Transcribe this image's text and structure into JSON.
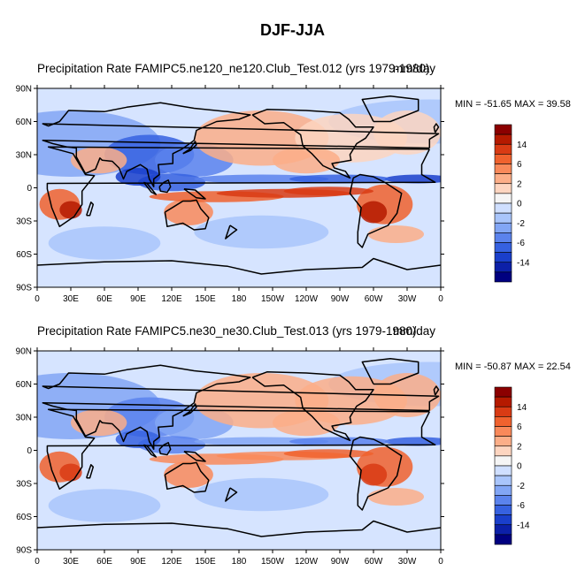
{
  "figure": {
    "title": "DJF-JJA"
  },
  "chart_data": [
    {
      "type": "heatmap",
      "title": "Precipitation Rate",
      "subtitle": "FAMIPC5.ne120_ne120.Club_Test.012 (yrs 1979-1980)",
      "units": "mm/day",
      "stats": "MIN = -51.65 MAX =  39.58",
      "xticks": [
        "0",
        "30E",
        "60E",
        "90E",
        "120E",
        "150E",
        "180",
        "150W",
        "120W",
        "90W",
        "60W",
        "30W",
        "0"
      ],
      "yticks": [
        "90N",
        "60N",
        "30N",
        "0",
        "30S",
        "60S",
        "90S"
      ],
      "xlim": [
        0,
        360
      ],
      "ylim": [
        -90,
        90
      ],
      "colorbar": {
        "labels": [
          "14",
          "6",
          "2",
          "0",
          "-2",
          "-6",
          "-14"
        ],
        "colors": [
          "#8b0000",
          "#b51a00",
          "#d93b14",
          "#f0622e",
          "#f9895a",
          "#fcae88",
          "#fdd5c0",
          "#f5f5f5",
          "#cfdfff",
          "#a9c5fb",
          "#82a6f5",
          "#5b83ed",
          "#3661e0",
          "#1a3fcb",
          "#0c20a8",
          "#000080"
        ]
      }
    },
    {
      "type": "heatmap",
      "title": "Precipitation Rate",
      "subtitle": "FAMIPC5.ne30_ne30.Club_Test.013 (yrs 1979-1980)",
      "units": "mm/day",
      "stats": "MIN = -50.87 MAX =  22.54",
      "xticks": [
        "0",
        "30E",
        "60E",
        "90E",
        "120E",
        "150E",
        "180",
        "150W",
        "120W",
        "90W",
        "60W",
        "30W",
        "0"
      ],
      "yticks": [
        "90N",
        "60N",
        "30N",
        "0",
        "30S",
        "60S",
        "90S"
      ],
      "xlim": [
        0,
        360
      ],
      "ylim": [
        -90,
        90
      ],
      "colorbar": {
        "labels": [
          "14",
          "6",
          "2",
          "0",
          "-2",
          "-6",
          "-14"
        ],
        "colors": [
          "#8b0000",
          "#b51a00",
          "#d93b14",
          "#f0622e",
          "#f9895a",
          "#fcae88",
          "#fdd5c0",
          "#f5f5f5",
          "#cfdfff",
          "#a9c5fb",
          "#82a6f5",
          "#5b83ed",
          "#3661e0",
          "#1a3fcb",
          "#0c20a8",
          "#000080"
        ]
      }
    }
  ]
}
